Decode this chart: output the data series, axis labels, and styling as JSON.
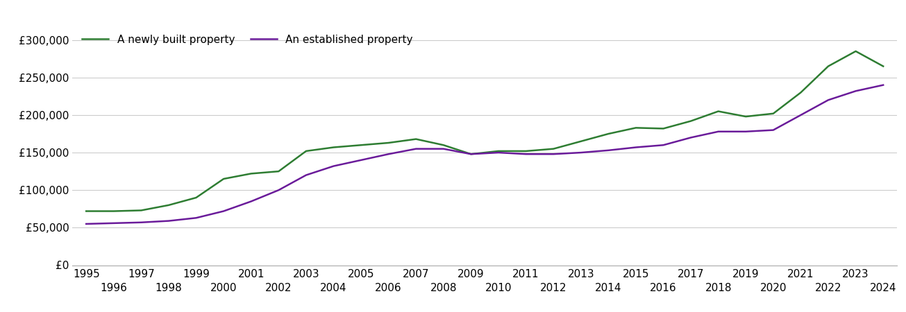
{
  "years": [
    1995,
    1996,
    1997,
    1998,
    1999,
    2000,
    2001,
    2002,
    2003,
    2004,
    2005,
    2006,
    2007,
    2008,
    2009,
    2010,
    2011,
    2012,
    2013,
    2014,
    2015,
    2016,
    2017,
    2018,
    2019,
    2020,
    2021,
    2022,
    2023,
    2024
  ],
  "new_build": [
    72000,
    72000,
    73000,
    80000,
    90000,
    115000,
    122000,
    125000,
    152000,
    157000,
    160000,
    163000,
    168000,
    160000,
    148000,
    152000,
    152000,
    155000,
    165000,
    175000,
    183000,
    182000,
    192000,
    205000,
    198000,
    202000,
    230000,
    265000,
    285000,
    265000
  ],
  "established": [
    55000,
    56000,
    57000,
    59000,
    63000,
    72000,
    85000,
    100000,
    120000,
    132000,
    140000,
    148000,
    155000,
    155000,
    148000,
    150000,
    148000,
    148000,
    150000,
    153000,
    157000,
    160000,
    170000,
    178000,
    178000,
    180000,
    200000,
    220000,
    232000,
    240000
  ],
  "new_build_color": "#2e7d32",
  "established_color": "#6a1b9a",
  "new_build_label": "A newly built property",
  "established_label": "An established property",
  "ylim": [
    0,
    320000
  ],
  "yticks": [
    0,
    50000,
    100000,
    150000,
    200000,
    250000,
    300000
  ],
  "ytick_labels": [
    "£0",
    "£50,000",
    "£100,000",
    "£150,000",
    "£200,000",
    "£250,000",
    "£300,000"
  ],
  "xlim_left": 1994.5,
  "xlim_right": 2024.5,
  "xticks_top": [
    1995,
    1997,
    1999,
    2001,
    2003,
    2005,
    2007,
    2009,
    2011,
    2013,
    2015,
    2017,
    2019,
    2021,
    2023
  ],
  "xticks_bottom": [
    1996,
    1998,
    2000,
    2002,
    2004,
    2006,
    2008,
    2010,
    2012,
    2014,
    2016,
    2018,
    2020,
    2022,
    2024
  ],
  "background_color": "#ffffff",
  "grid_color": "#cccccc",
  "line_width": 1.8,
  "legend_fontsize": 11,
  "tick_fontsize": 11
}
